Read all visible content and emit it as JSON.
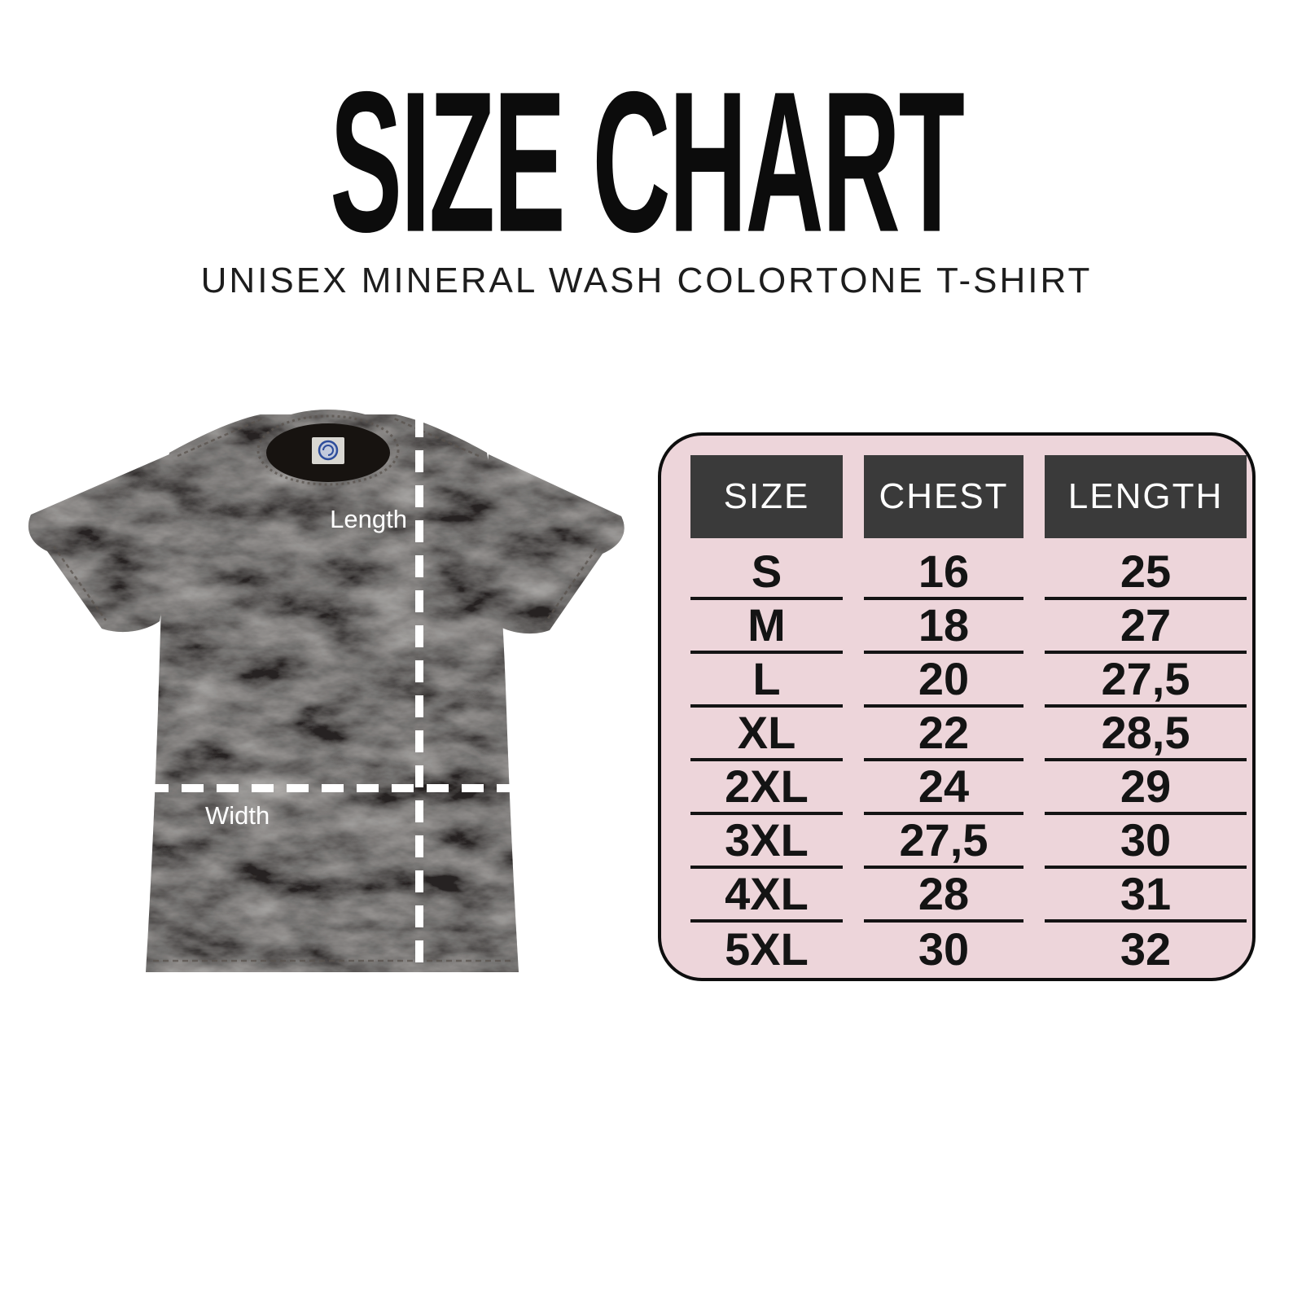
{
  "header": {
    "title": "SIZE CHART",
    "subtitle": "UNISEX MINERAL WASH COLORTONE T-SHIRT"
  },
  "diagram": {
    "length_label": "Length",
    "width_label": "Width"
  },
  "chart_data": {
    "type": "table",
    "title": "SIZE CHART",
    "subtitle": "UNISEX MINERAL WASH COLORTONE T-SHIRT",
    "columns": [
      "SIZE",
      "CHEST",
      "LENGTH"
    ],
    "rows": [
      [
        "S",
        "16",
        "25"
      ],
      [
        "M",
        "18",
        "27"
      ],
      [
        "L",
        "20",
        "27,5"
      ],
      [
        "XL",
        "22",
        "28,5"
      ],
      [
        "2XL",
        "24",
        "29"
      ],
      [
        "3XL",
        "27,5",
        "30"
      ],
      [
        "4XL",
        "28",
        "31"
      ],
      [
        "5XL",
        "30",
        "32"
      ]
    ]
  },
  "colors": {
    "panel_bg": "#edd5da",
    "header_bg": "#3a3a3a",
    "header_text": "#ffffff",
    "cell_text": "#141414",
    "title_color": "#0c0c0c",
    "shirt_base": "#272322",
    "guide_color": "#ffffff"
  }
}
